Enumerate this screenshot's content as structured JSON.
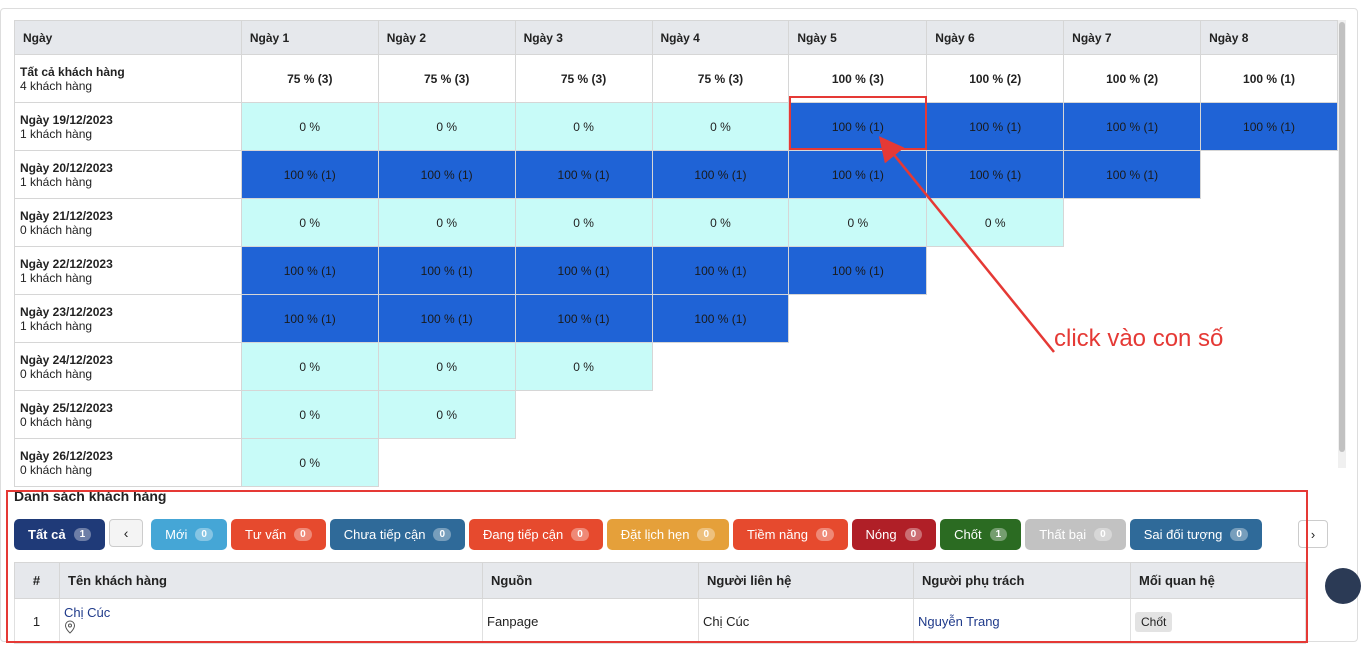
{
  "cohort": {
    "header": [
      "Ngày",
      "Ngày 1",
      "Ngày 2",
      "Ngày 3",
      "Ngày 4",
      "Ngày 5",
      "Ngày 6",
      "Ngày 7",
      "Ngày 8"
    ],
    "rows": [
      {
        "label": "Tất cả khách hàng",
        "sub": "4 khách hàng",
        "cells": [
          "75 % (3)",
          "75 % (3)",
          "75 % (3)",
          "75 % (3)",
          "100 % (3)",
          "100 % (2)",
          "100 % (2)",
          "100 % (1)"
        ]
      },
      {
        "label": "Ngày 19/12/2023",
        "sub": "1 khách hàng",
        "cells": [
          "0 %",
          "0 %",
          "0 %",
          "0 %",
          "100 % (1)",
          "100 % (1)",
          "100 % (1)",
          "100 % (1)"
        ]
      },
      {
        "label": "Ngày 20/12/2023",
        "sub": "1 khách hàng",
        "cells": [
          "100 % (1)",
          "100 % (1)",
          "100 % (1)",
          "100 % (1)",
          "100 % (1)",
          "100 % (1)",
          "100 % (1)"
        ]
      },
      {
        "label": "Ngày 21/12/2023",
        "sub": "0 khách hàng",
        "cells": [
          "0 %",
          "0 %",
          "0 %",
          "0 %",
          "0 %",
          "0 %"
        ]
      },
      {
        "label": "Ngày 22/12/2023",
        "sub": "1 khách hàng",
        "cells": [
          "100 % (1)",
          "100 % (1)",
          "100 % (1)",
          "100 % (1)",
          "100 % (1)"
        ]
      },
      {
        "label": "Ngày 23/12/2023",
        "sub": "1 khách hàng",
        "cells": [
          "100 % (1)",
          "100 % (1)",
          "100 % (1)",
          "100 % (1)"
        ]
      },
      {
        "label": "Ngày 24/12/2023",
        "sub": "0 khách hàng",
        "cells": [
          "0 %",
          "0 %",
          "0 %"
        ]
      },
      {
        "label": "Ngày 25/12/2023",
        "sub": "0 khách hàng",
        "cells": [
          "0 %",
          "0 %"
        ]
      },
      {
        "label": "Ngày 26/12/2023",
        "sub": "0 khách hàng",
        "cells": [
          "0 %"
        ]
      }
    ]
  },
  "annotation": "click vào con số",
  "customers": {
    "title": "Danh sách khách hàng",
    "tabs": [
      {
        "label": "Tất cả",
        "count": 1,
        "color": "#1f3a78"
      },
      {
        "label": "Mới",
        "count": 0,
        "color": "#45a6d6"
      },
      {
        "label": "Tư vấn",
        "count": 0,
        "color": "#e64a2e"
      },
      {
        "label": "Chưa tiếp cận",
        "count": 0,
        "color": "#2f6a99"
      },
      {
        "label": "Đang tiếp cận",
        "count": 0,
        "color": "#e64a2e"
      },
      {
        "label": "Đặt lịch hẹn",
        "count": 0,
        "color": "#e5a03a"
      },
      {
        "label": "Tiềm năng",
        "count": 0,
        "color": "#e64a2e"
      },
      {
        "label": "Nóng",
        "count": 0,
        "color": "#b01f27"
      },
      {
        "label": "Chốt",
        "count": 1,
        "color": "#2b6b22"
      },
      {
        "label": "Thất bại",
        "count": 0,
        "color": "#c2c2c2"
      },
      {
        "label": "Sai đối tượng",
        "count": 0,
        "color": "#2f6a99"
      }
    ],
    "table": {
      "header": [
        "#",
        "Tên khách hàng",
        "Nguồn",
        "Người liên hệ",
        "Người phụ trách",
        "Mối quan hệ"
      ],
      "rows": [
        [
          1,
          "Chị Cúc",
          "Fanpage",
          "Chị Cúc",
          "Nguyễn Trang",
          "Chốt"
        ]
      ]
    }
  }
}
